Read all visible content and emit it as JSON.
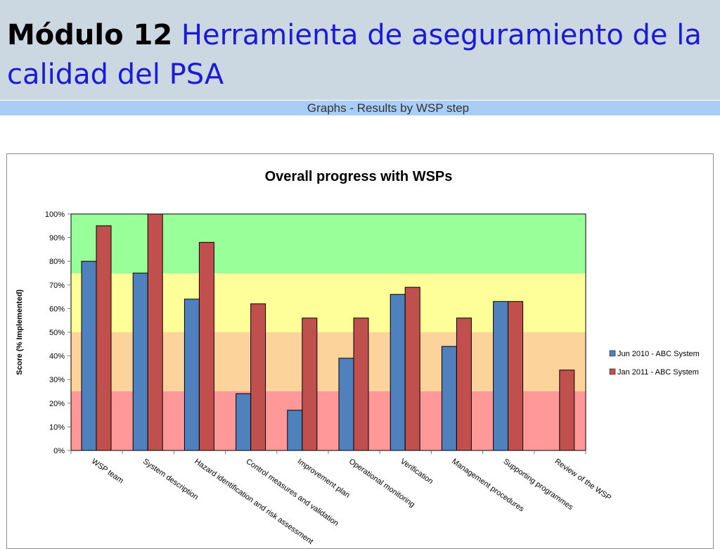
{
  "slide": {
    "title_bold": "Módulo 12",
    "title_rest": "Herramienta de aseguramiento de la calidad del PSA",
    "graph_header": "Graphs - Results by WSP step"
  },
  "colors": {
    "title_band": "#ccd8e1",
    "graph_band": "#a9cdf5",
    "series1": "#4f81bd",
    "series2": "#c0504d",
    "zone_green": "#99ff99",
    "zone_yellow": "#ffff99",
    "zone_orange": "#fcd49b",
    "zone_red": "#ff9999"
  },
  "chart_data": {
    "type": "bar",
    "title": "Overall progress with WSPs",
    "ylabel": "Score (% Implemented)",
    "xlabel": "",
    "ylim": [
      0,
      100
    ],
    "yticks": [
      "0%",
      "10%",
      "20%",
      "30%",
      "40%",
      "50%",
      "60%",
      "70%",
      "80%",
      "90%",
      "100%"
    ],
    "grid": false,
    "legend_position": "right",
    "bands": [
      {
        "from": 0,
        "to": 25,
        "color": "#ff9999"
      },
      {
        "from": 25,
        "to": 50,
        "color": "#fcd49b"
      },
      {
        "from": 50,
        "to": 75,
        "color": "#ffff99"
      },
      {
        "from": 75,
        "to": 100,
        "color": "#99ff99"
      }
    ],
    "categories": [
      "WSP team",
      "System description",
      "Hazard identification and risk assessment",
      "Control measures and validation",
      "Improvement plan",
      "Operational monitoring",
      "Verification",
      "Management procedures",
      "Supporting programmes",
      "Review of the WSP"
    ],
    "series": [
      {
        "name": "Jun 2010 - ABC System",
        "color": "#4f81bd",
        "values": [
          80,
          75,
          64,
          24,
          17,
          39,
          66,
          44,
          63,
          null
        ]
      },
      {
        "name": "Jan 2011 - ABC System",
        "color": "#c0504d",
        "values": [
          95,
          100,
          88,
          62,
          56,
          56,
          69,
          56,
          63,
          34
        ]
      }
    ]
  }
}
